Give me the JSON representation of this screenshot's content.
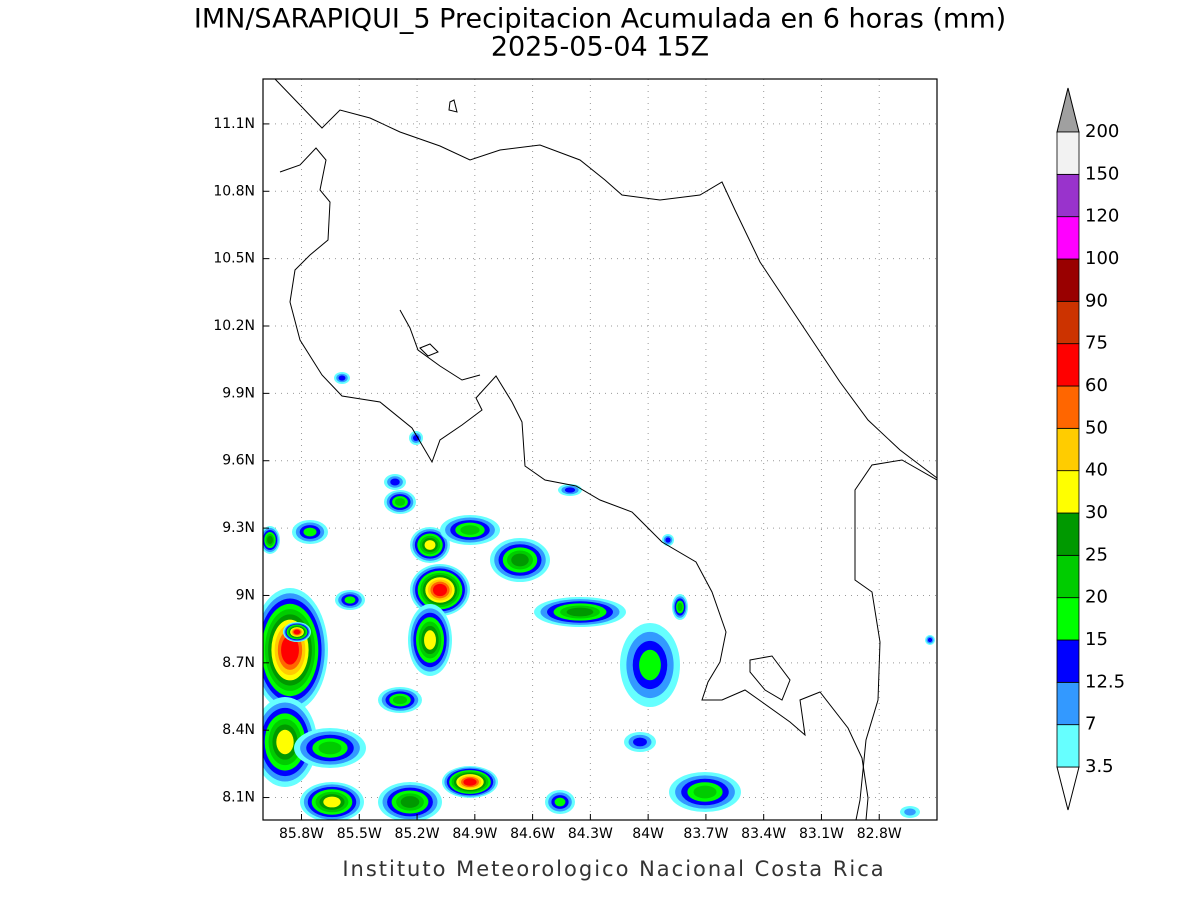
{
  "header": {
    "title": "IMN/SARAPIQUI_5 Precipitacion Acumulada en 6 horas (mm)",
    "subtitle": "2025-05-04 15Z"
  },
  "map": {
    "lon_range": [
      -86.0,
      -82.5
    ],
    "lat_range": [
      8.0,
      11.3
    ],
    "lon_ticks": [
      {
        "value": -85.8,
        "label": "85.8W"
      },
      {
        "value": -85.5,
        "label": "85.5W"
      },
      {
        "value": -85.2,
        "label": "85.2W"
      },
      {
        "value": -84.9,
        "label": "84.9W"
      },
      {
        "value": -84.6,
        "label": "84.6W"
      },
      {
        "value": -84.3,
        "label": "84.3W"
      },
      {
        "value": -84.0,
        "label": "84W"
      },
      {
        "value": -83.7,
        "label": "83.7W"
      },
      {
        "value": -83.4,
        "label": "83.4W"
      },
      {
        "value": -83.1,
        "label": "83.1W"
      },
      {
        "value": -82.8,
        "label": "82.8W"
      }
    ],
    "lat_ticks": [
      {
        "value": 8.1,
        "label": "8.1N"
      },
      {
        "value": 8.4,
        "label": "8.4N"
      },
      {
        "value": 8.7,
        "label": "8.7N"
      },
      {
        "value": 9.0,
        "label": "9N"
      },
      {
        "value": 9.3,
        "label": "9.3N"
      },
      {
        "value": 9.6,
        "label": "9.6N"
      },
      {
        "value": 9.9,
        "label": "9.9N"
      },
      {
        "value": 10.2,
        "label": "10.2N"
      },
      {
        "value": 10.5,
        "label": "10.5N"
      },
      {
        "value": 10.8,
        "label": "10.8N"
      },
      {
        "value": 11.1,
        "label": "11.1N"
      }
    ],
    "grid": true
  },
  "colorbar": {
    "levels": [
      3.5,
      7,
      12.5,
      15,
      20,
      25,
      30,
      40,
      50,
      60,
      75,
      90,
      100,
      120,
      150,
      200
    ],
    "colors": [
      "#66ffff",
      "#3399ff",
      "#0000ff",
      "#00ff00",
      "#00cc00",
      "#009900",
      "#ffff00",
      "#ffcc00",
      "#ff6600",
      "#ff0000",
      "#cc3300",
      "#990000",
      "#ff00ff",
      "#9933cc",
      "#f2f2f2"
    ],
    "under_color": "#ffffff",
    "over_color": "#a0a0a0"
  },
  "footer": "Instituto Meteorologico Nacional Costa Rica"
}
